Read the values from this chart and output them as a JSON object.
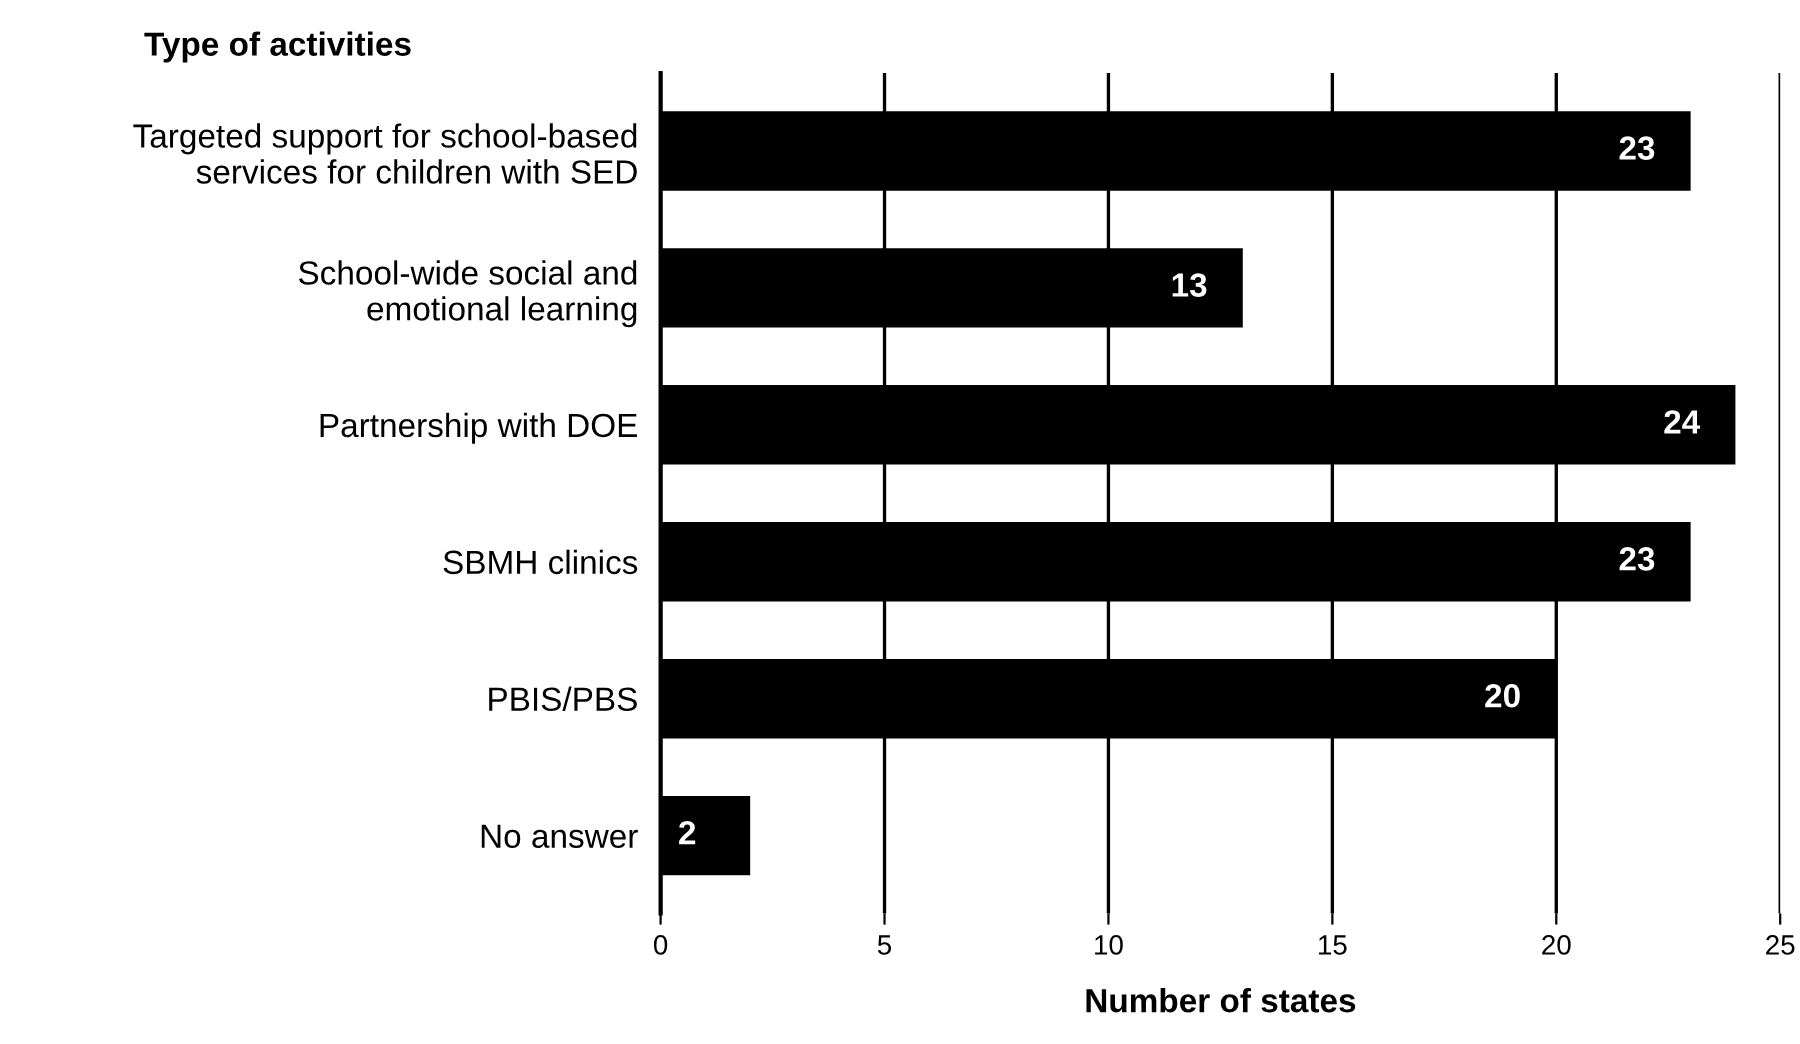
{
  "chart_data": {
    "type": "bar",
    "orientation": "horizontal",
    "ylabel": "Type of activities",
    "xlabel": "Number of states",
    "categories": [
      "Targeted support for school-based\nservices for children with SED",
      "School-wide social and\nemotional learning",
      "Partnership with DOE",
      "SBMH clinics",
      "PBIS/PBS",
      "No answer"
    ],
    "values": [
      23,
      13,
      24,
      23,
      20,
      2
    ],
    "color": "#000000",
    "xlim": [
      0,
      25
    ],
    "xticks": [
      0,
      5,
      10,
      15,
      20,
      25
    ],
    "grid": "x",
    "data_labels": true
  }
}
